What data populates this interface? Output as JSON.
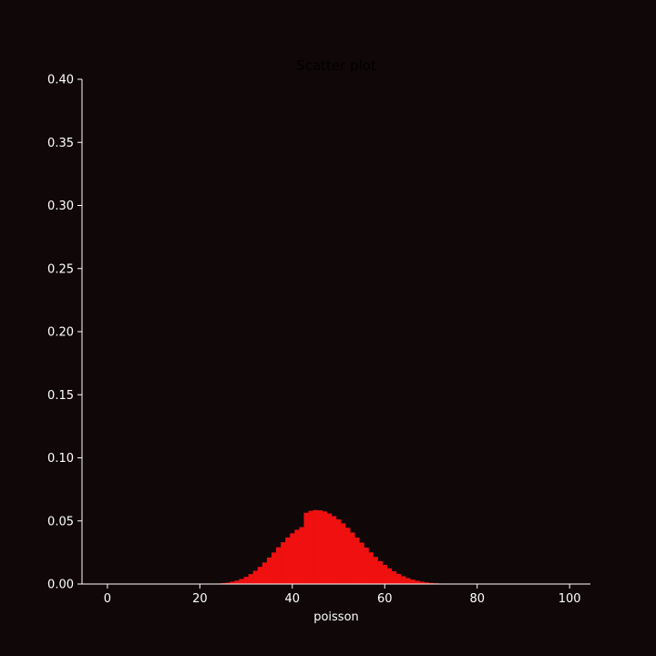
{
  "chart_data": {
    "type": "bar",
    "title": "Scatter plot",
    "xlabel": "poisson",
    "ylabel": "",
    "xlim": [
      -5.5,
      104.5
    ],
    "ylim": [
      0,
      0.4
    ],
    "grid": false,
    "legend": "none",
    "x_ticks": [
      0,
      20,
      40,
      60,
      80,
      100
    ],
    "y_ticks": [
      "0.00",
      "0.05",
      "0.10",
      "0.15",
      "0.20",
      "0.25",
      "0.30",
      "0.35",
      "0.40"
    ],
    "x": [
      22,
      23,
      24,
      25,
      26,
      27,
      28,
      29,
      30,
      31,
      32,
      33,
      34,
      35,
      36,
      37,
      38,
      39,
      40,
      41,
      42,
      43,
      44,
      45,
      46,
      47,
      48,
      49,
      50,
      51,
      52,
      53,
      54,
      55,
      56,
      57,
      58,
      59,
      60,
      61,
      62,
      63,
      64,
      65,
      66,
      67,
      68,
      69,
      70,
      71,
      72,
      73,
      74,
      75
    ],
    "values": [
      0.0001,
      0.0002,
      0.0004,
      0.0007,
      0.0011,
      0.0018,
      0.0027,
      0.004,
      0.0057,
      0.0079,
      0.0105,
      0.0136,
      0.0171,
      0.021,
      0.025,
      0.0291,
      0.0331,
      0.0369,
      0.0402,
      0.043,
      0.0451,
      0.0565,
      0.058,
      0.0586,
      0.0584,
      0.0575,
      0.0559,
      0.0538,
      0.0512,
      0.0481,
      0.0446,
      0.0408,
      0.0368,
      0.0328,
      0.0289,
      0.0251,
      0.0215,
      0.0182,
      0.0152,
      0.0125,
      0.0101,
      0.008,
      0.0062,
      0.0047,
      0.0035,
      0.0026,
      0.0019,
      0.0013,
      0.0009,
      0.0006,
      0.0004,
      0.0002,
      0.0001,
      0.0001
    ],
    "bar_color": "#f01010",
    "background": "#100808",
    "axis_color": "#ffffff",
    "title_color": "#000000"
  }
}
